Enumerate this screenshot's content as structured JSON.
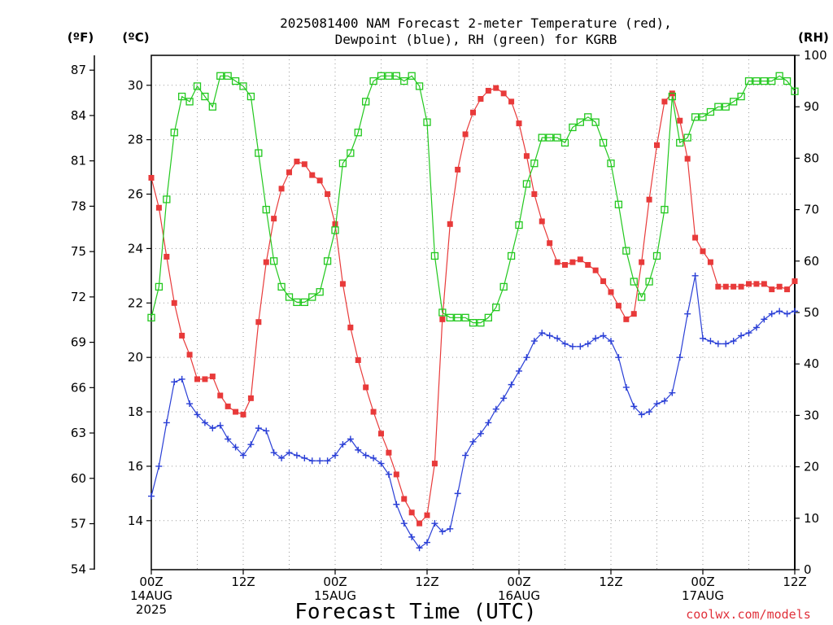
{
  "title_line1": "2025081400 NAM Forecast 2-meter Temperature (red),",
  "title_line2": "Dewpoint (blue), RH (green) for KGRB",
  "units": {
    "fahrenheit": "(ºF)",
    "celsius": "(ºC)",
    "rh": "(RH)"
  },
  "xlabel": "Forecast Time (UTC)",
  "credit": "coolwx.com/models",
  "chart_data": {
    "type": "line",
    "x_range_hours": [
      0,
      84
    ],
    "x_step_hours": 1,
    "x_ticks": [
      {
        "hour": 0,
        "lines": [
          "00Z",
          "14AUG",
          "2025"
        ]
      },
      {
        "hour": 12,
        "lines": [
          "12Z"
        ]
      },
      {
        "hour": 24,
        "lines": [
          "00Z",
          "15AUG"
        ]
      },
      {
        "hour": 36,
        "lines": [
          "12Z"
        ]
      },
      {
        "hour": 48,
        "lines": [
          "00Z",
          "16AUG"
        ]
      },
      {
        "hour": 60,
        "lines": [
          "12Z"
        ]
      },
      {
        "hour": 72,
        "lines": [
          "00Z",
          "17AUG"
        ]
      },
      {
        "hour": 84,
        "lines": [
          "12Z"
        ]
      }
    ],
    "y_celsius": {
      "min": 12.2,
      "max": 31.1,
      "ticks": [
        14,
        16,
        18,
        20,
        22,
        24,
        26,
        28,
        30
      ]
    },
    "y_fahrenheit": {
      "ticks": [
        54,
        57,
        60,
        63,
        66,
        69,
        72,
        75,
        78,
        81,
        84,
        87
      ]
    },
    "y_rh": {
      "min": 0,
      "max": 100,
      "ticks": [
        0,
        10,
        20,
        30,
        40,
        50,
        60,
        70,
        80,
        90,
        100
      ]
    },
    "grid": true,
    "series": [
      {
        "name": "Temperature",
        "unit": "C",
        "color": "#e83a3a",
        "marker": "filled-square",
        "values": [
          26.6,
          25.5,
          23.7,
          22.0,
          20.8,
          20.1,
          19.2,
          19.2,
          19.3,
          18.6,
          18.2,
          18.0,
          17.9,
          18.5,
          21.3,
          23.5,
          25.1,
          26.2,
          26.8,
          27.2,
          27.1,
          26.7,
          26.5,
          26.0,
          24.9,
          22.7,
          21.1,
          19.9,
          18.9,
          18.0,
          17.2,
          16.5,
          15.7,
          14.8,
          14.3,
          13.9,
          14.2,
          16.1,
          21.4,
          24.9,
          26.9,
          28.2,
          29.0,
          29.5,
          29.8,
          29.9,
          29.7,
          29.4,
          28.6,
          27.4,
          26.0,
          25.0,
          24.2,
          23.5,
          23.4,
          23.5,
          23.6,
          23.4,
          23.2,
          22.8,
          22.4,
          21.9,
          21.4,
          21.6,
          23.5,
          25.8,
          27.8,
          29.4,
          29.7,
          28.7,
          27.3,
          24.4,
          23.9,
          23.5,
          22.6,
          22.6,
          22.6,
          22.6,
          22.7,
          22.7,
          22.7,
          22.5,
          22.6,
          22.5,
          22.8
        ]
      },
      {
        "name": "Dewpoint",
        "unit": "C",
        "color": "#2a3fd6",
        "marker": "plus",
        "values": [
          14.9,
          16.0,
          17.6,
          19.1,
          19.2,
          18.3,
          17.9,
          17.6,
          17.4,
          17.5,
          17.0,
          16.7,
          16.4,
          16.8,
          17.4,
          17.3,
          16.5,
          16.3,
          16.5,
          16.4,
          16.3,
          16.2,
          16.2,
          16.2,
          16.4,
          16.8,
          17.0,
          16.6,
          16.4,
          16.3,
          16.1,
          15.7,
          14.6,
          13.9,
          13.4,
          13.0,
          13.2,
          13.9,
          13.6,
          13.7,
          15.0,
          16.4,
          16.9,
          17.2,
          17.6,
          18.1,
          18.5,
          19.0,
          19.5,
          20.0,
          20.6,
          20.9,
          20.8,
          20.7,
          20.5,
          20.4,
          20.4,
          20.5,
          20.7,
          20.8,
          20.6,
          20.0,
          18.9,
          18.2,
          17.9,
          18.0,
          18.3,
          18.4,
          18.7,
          20.0,
          21.6,
          23.0,
          20.7,
          20.6,
          20.5,
          20.5,
          20.6,
          20.8,
          20.9,
          21.1,
          21.4,
          21.6,
          21.7,
          21.6,
          21.7
        ]
      },
      {
        "name": "RH",
        "unit": "%",
        "color": "#22c81e",
        "marker": "open-square",
        "values": [
          49,
          55,
          72,
          85,
          92,
          91,
          94,
          92,
          90,
          96,
          96,
          95,
          94,
          92,
          81,
          70,
          60,
          55,
          53,
          52,
          52,
          53,
          54,
          60,
          66,
          79,
          81,
          85,
          91,
          95,
          96,
          96,
          96,
          95,
          96,
          94,
          87,
          61,
          50,
          49,
          49,
          49,
          48,
          48,
          49,
          51,
          55,
          61,
          67,
          75,
          79,
          84,
          84,
          84,
          83,
          86,
          87,
          88,
          87,
          83,
          79,
          71,
          62,
          56,
          53,
          56,
          61,
          70,
          92,
          83,
          84,
          88,
          88,
          89,
          90,
          90,
          91,
          92,
          95,
          95,
          95,
          95,
          96,
          95,
          93
        ]
      }
    ]
  }
}
